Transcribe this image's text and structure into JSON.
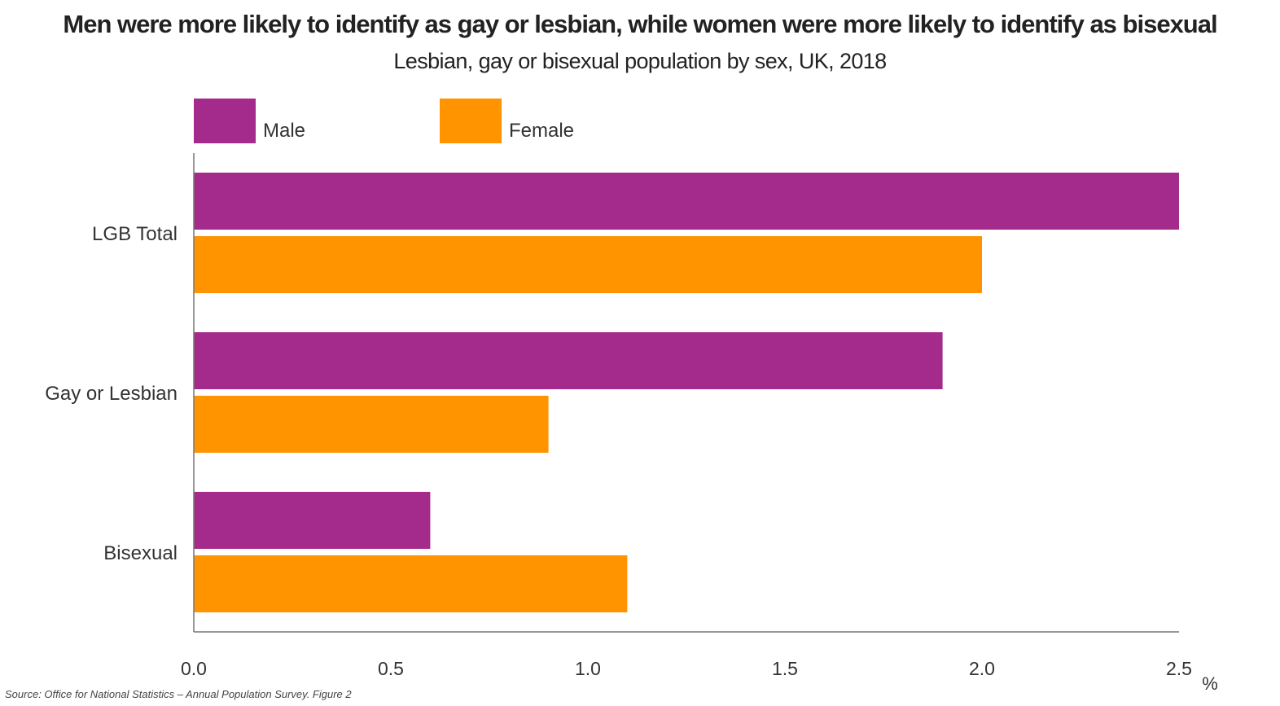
{
  "chart_data": {
    "type": "bar",
    "orientation": "horizontal",
    "title": "Men were more likely to identify as gay or lesbian, while women were more likely to identify as bisexual",
    "subtitle": "Lesbian, gay or bisexual population by sex, UK, 2018",
    "categories": [
      "LGB Total",
      "Gay or Lesbian",
      "Bisexual"
    ],
    "series": [
      {
        "name": "Male",
        "color": "#a42a8b",
        "values": [
          2.5,
          1.9,
          0.6
        ]
      },
      {
        "name": "Female",
        "color": "#ff9400",
        "values": [
          2.0,
          0.9,
          1.1
        ]
      }
    ],
    "x_ticks": [
      "0.0",
      "0.5",
      "1.0",
      "1.5",
      "2.0",
      "2.5"
    ],
    "xlim": [
      0,
      2.5
    ],
    "unit": "%",
    "legend_position": "top-left",
    "grid": false
  },
  "source": "Source: Office for National Statistics – Annual Population Survey. Figure 2"
}
